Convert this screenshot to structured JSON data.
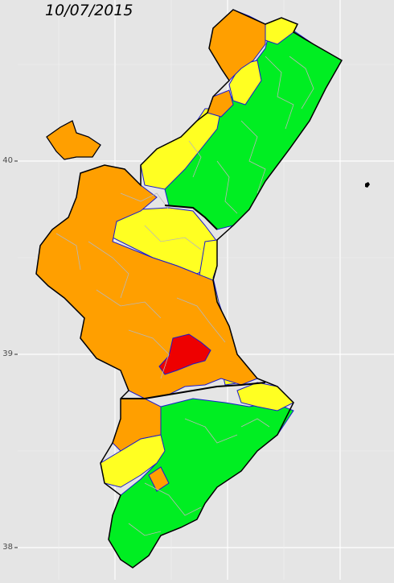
{
  "map": {
    "date_title": "10/07/2015",
    "y_axis_ticks": [
      "40",
      "39",
      "38"
    ],
    "colors": {
      "background": "#e5e5e5",
      "grid": "#ffffff",
      "green": "#00ee22",
      "yellow": "#ffff22",
      "orange": "#ff9f00",
      "red": "#ee0000",
      "border_main": "#000000",
      "border_region": "#1a1ad0",
      "border_muni": "#b8b8b8"
    },
    "zones": [
      "green",
      "yellow",
      "orange",
      "red"
    ]
  }
}
